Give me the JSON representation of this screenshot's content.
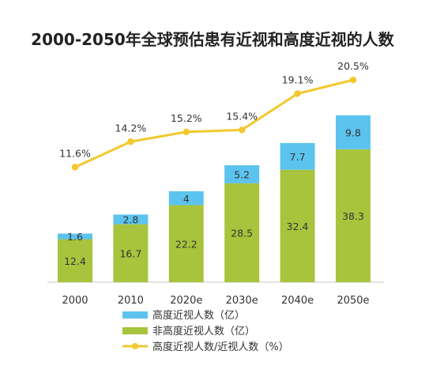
{
  "chart_data": {
    "type": "bar",
    "stacked": true,
    "title": "2000-2050年全球预估患有近视和高度近视的人数",
    "categories": [
      "2000",
      "2010",
      "2020e",
      "2030e",
      "2040e",
      "2050e"
    ],
    "series": [
      {
        "name": "高度近视人数（亿）",
        "values": [
          1.6,
          2.8,
          4.0,
          5.2,
          7.7,
          9.8
        ],
        "color": "#5cc3ee",
        "kind": "bar"
      },
      {
        "name": "非高度近视人数（亿）",
        "values": [
          12.4,
          16.7,
          22.2,
          28.5,
          32.4,
          38.3
        ],
        "color": "#a7c43c",
        "kind": "bar"
      },
      {
        "name": "高度近视人数/近视人数（%）",
        "values": [
          11.6,
          14.2,
          15.2,
          15.4,
          19.1,
          20.5
        ],
        "labels": [
          "11.6%",
          "14.2%",
          "15.2%",
          "15.4%",
          "19.1%",
          "20.5%"
        ],
        "color": "#f2c82e",
        "kind": "line"
      }
    ],
    "legend_placement": "bottom",
    "grid": false
  }
}
